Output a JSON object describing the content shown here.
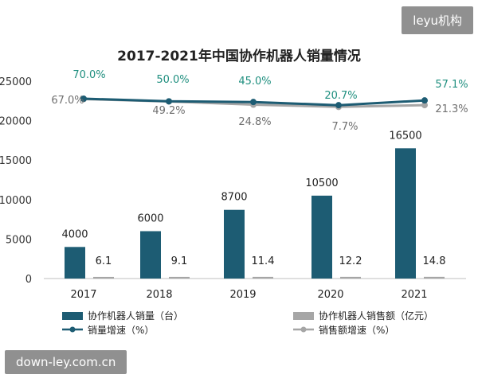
{
  "watermarks": {
    "top_right": "leyu机构",
    "bottom_left": "down-ley.com.cn"
  },
  "colors": {
    "bar_sales": "#1d5c73",
    "bar_revenue": "#a6a6a6",
    "line_sales_growth": "#1d5c73",
    "line_revenue_growth": "#a6a6a6",
    "growth_label_sales": "#1f8f7f",
    "growth_label_revenue": "#6f6f6f"
  },
  "chart_data": {
    "type": "bar",
    "title": "2017-2021年中国协作机器人销量情况",
    "categories": [
      "2017",
      "2018",
      "2019",
      "2020",
      "2021"
    ],
    "ylim": [
      0,
      25000
    ],
    "yticks": [
      0,
      5000,
      10000,
      15000,
      20000,
      25000
    ],
    "series": [
      {
        "name": "协作机器人销量（台）",
        "type": "bar",
        "values": [
          4000,
          6000,
          8700,
          10500,
          16500
        ]
      },
      {
        "name": "协作机器人销售额（亿元）",
        "type": "bar",
        "values": [
          6.1,
          9.1,
          11.4,
          12.2,
          14.8
        ]
      },
      {
        "name": "销量增速（%）",
        "type": "line",
        "values": [
          70.0,
          50.0,
          45.0,
          20.7,
          57.1
        ],
        "labels": [
          "70.0%",
          "50.0%",
          "45.0%",
          "20.7%",
          "57.1%"
        ]
      },
      {
        "name": "销售额增速（%）",
        "type": "line",
        "values": [
          67.0,
          49.2,
          24.8,
          7.7,
          21.3
        ],
        "labels": [
          "67.0%",
          "49.2%",
          "24.8%",
          "7.7%",
          "21.3%"
        ]
      }
    ],
    "bar_labels": {
      "sales": [
        "4000",
        "6000",
        "8700",
        "10500",
        "16500"
      ],
      "revenue": [
        "6.1",
        "9.1",
        "11.4",
        "12.2",
        "14.8"
      ]
    },
    "legend": {
      "position": "bottom",
      "items": [
        "协作机器人销量（台）",
        "协作机器人销售额（亿元）",
        "销量增速（%）",
        "销售额增速（%）"
      ]
    },
    "grid": false
  }
}
